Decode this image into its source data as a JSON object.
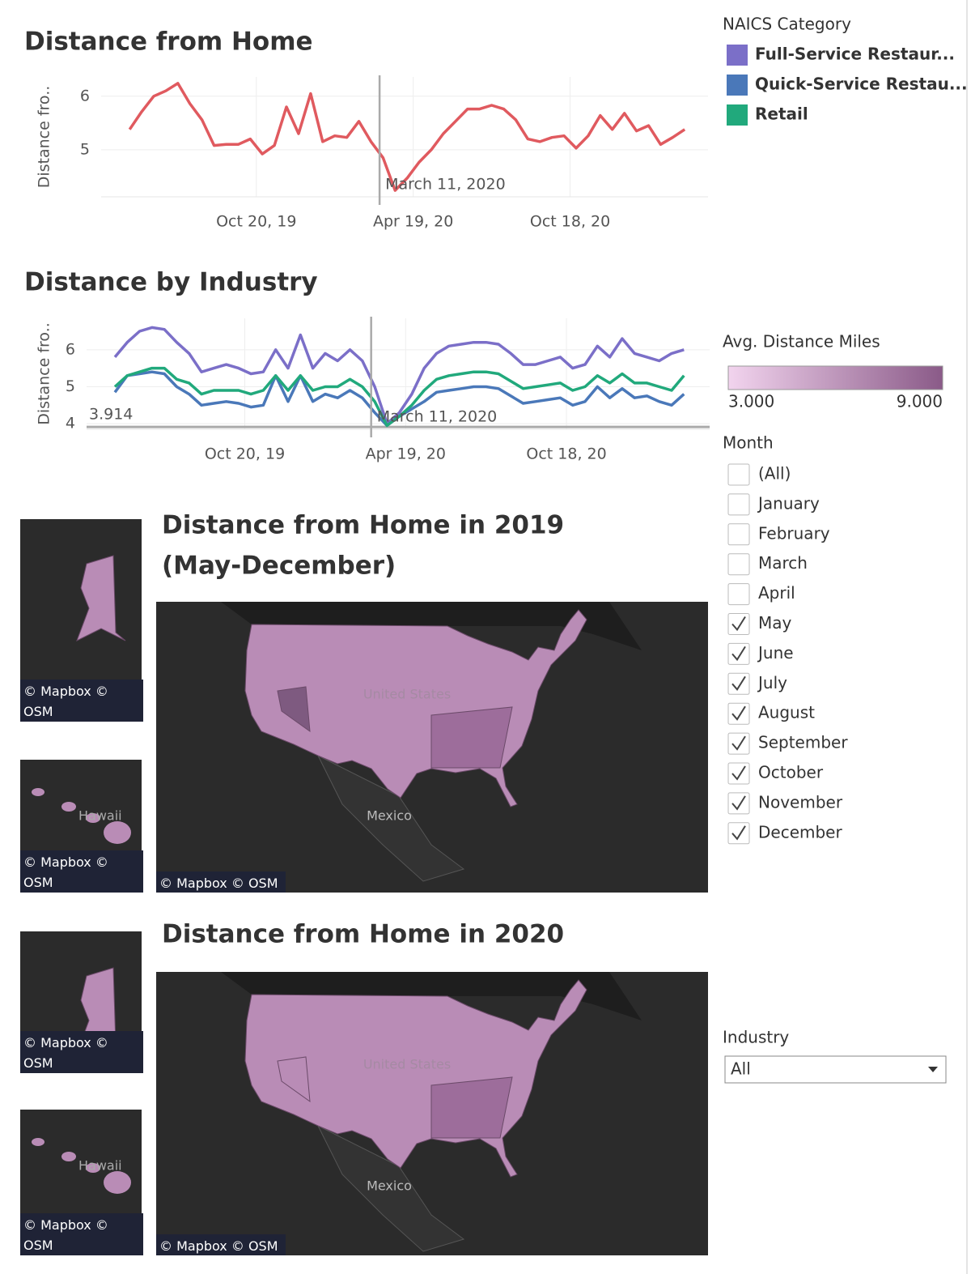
{
  "chart_data": [
    {
      "type": "line",
      "title": "Distance from Home",
      "y_label": "Distance fro..",
      "color": "#e05a5f",
      "x": [
        "2019-05-26",
        "2019-06-09",
        "2019-06-23",
        "2019-07-07",
        "2019-07-21",
        "2019-08-04",
        "2019-08-18",
        "2019-09-01",
        "2019-09-15",
        "2019-09-29",
        "2019-10-13",
        "2019-10-27",
        "2019-11-10",
        "2019-11-24",
        "2019-12-08",
        "2019-12-22",
        "2020-01-05",
        "2020-01-19",
        "2020-02-02",
        "2020-02-16",
        "2020-03-01",
        "2020-03-15",
        "2020-03-29",
        "2020-04-12",
        "2020-04-26",
        "2020-05-10",
        "2020-05-24",
        "2020-06-07",
        "2020-06-21",
        "2020-07-05",
        "2020-07-19",
        "2020-08-02",
        "2020-08-16",
        "2020-08-30",
        "2020-09-13",
        "2020-09-27",
        "2020-10-11",
        "2020-10-25",
        "2020-11-08",
        "2020-11-22",
        "2020-12-06",
        "2020-12-20",
        "2021-01-03",
        "2021-01-17",
        "2021-01-31",
        "2021-02-14",
        "2021-02-28"
      ],
      "values": [
        5.38,
        5.71,
        6.0,
        6.1,
        6.24,
        5.86,
        5.56,
        5.08,
        5.1,
        5.1,
        5.2,
        4.92,
        5.08,
        5.8,
        5.3,
        6.05,
        5.15,
        5.26,
        5.23,
        5.53,
        5.15,
        4.85,
        4.24,
        4.47,
        4.77,
        5.0,
        5.3,
        5.53,
        5.76,
        5.76,
        5.83,
        5.76,
        5.56,
        5.2,
        5.15,
        5.23,
        5.26,
        5.03,
        5.26,
        5.64,
        5.38,
        5.68,
        5.35,
        5.45,
        5.1,
        5.23,
        5.38
      ],
      "xlim": [
        "2019-04-23",
        "2021-03-27"
      ],
      "xticks": [
        {
          "value": "2019-10-20",
          "label": "Oct 20, 19"
        },
        {
          "value": "2020-04-19",
          "label": "Apr 19, 20"
        },
        {
          "value": "2020-10-18",
          "label": "Oct 18, 20"
        }
      ],
      "ylim": [
        4.12,
        6.36
      ],
      "yticks": [
        5,
        6
      ],
      "grid": true,
      "annotation": {
        "x": "2020-03-11",
        "label": "March 11, 2020"
      }
    },
    {
      "type": "line",
      "title": "Distance by Industry",
      "y_label": "Distance fro..",
      "legend_title": "NAICS Category",
      "x": [
        "2019-05-26",
        "2019-06-09",
        "2019-06-23",
        "2019-07-07",
        "2019-07-21",
        "2019-08-04",
        "2019-08-18",
        "2019-09-01",
        "2019-09-15",
        "2019-09-29",
        "2019-10-13",
        "2019-10-27",
        "2019-11-10",
        "2019-11-24",
        "2019-12-08",
        "2019-12-22",
        "2020-01-05",
        "2020-01-19",
        "2020-02-02",
        "2020-02-16",
        "2020-03-01",
        "2020-03-15",
        "2020-03-29",
        "2020-04-12",
        "2020-04-26",
        "2020-05-10",
        "2020-05-24",
        "2020-06-07",
        "2020-06-21",
        "2020-07-05",
        "2020-07-19",
        "2020-08-02",
        "2020-08-16",
        "2020-08-30",
        "2020-09-13",
        "2020-09-27",
        "2020-10-11",
        "2020-10-25",
        "2020-11-08",
        "2020-11-22",
        "2020-12-06",
        "2020-12-20",
        "2021-01-03",
        "2021-01-17",
        "2021-01-31",
        "2021-02-14",
        "2021-02-28"
      ],
      "series": [
        {
          "name": "Full-Service Restaur...",
          "color": "#7b6fc8",
          "values": [
            5.8,
            6.2,
            6.5,
            6.6,
            6.55,
            6.2,
            5.9,
            5.4,
            5.5,
            5.6,
            5.5,
            5.35,
            5.4,
            6.0,
            5.5,
            6.4,
            5.5,
            5.9,
            5.7,
            6.0,
            5.7,
            5.0,
            4.0,
            4.3,
            4.8,
            5.5,
            5.9,
            6.1,
            6.15,
            6.2,
            6.2,
            6.15,
            5.9,
            5.6,
            5.6,
            5.7,
            5.8,
            5.5,
            5.6,
            6.1,
            5.8,
            6.3,
            5.9,
            5.8,
            5.7,
            5.9,
            6.0
          ]
        },
        {
          "name": "Quick-Service Restau...",
          "color": "#4a78b9",
          "values": [
            4.85,
            5.3,
            5.35,
            5.4,
            5.35,
            5.0,
            4.8,
            4.5,
            4.55,
            4.6,
            4.55,
            4.45,
            4.5,
            5.3,
            4.6,
            5.3,
            4.6,
            4.8,
            4.7,
            4.9,
            4.7,
            4.3,
            3.95,
            4.2,
            4.4,
            4.6,
            4.85,
            4.9,
            4.95,
            5.0,
            5.0,
            4.95,
            4.75,
            4.55,
            4.6,
            4.65,
            4.7,
            4.5,
            4.6,
            5.0,
            4.7,
            4.95,
            4.7,
            4.75,
            4.6,
            4.5,
            4.8
          ]
        },
        {
          "name": "Retail",
          "color": "#21a97c",
          "values": [
            5.0,
            5.3,
            5.4,
            5.5,
            5.5,
            5.2,
            5.1,
            4.8,
            4.9,
            4.9,
            4.9,
            4.8,
            4.9,
            5.3,
            4.9,
            5.3,
            4.9,
            5.0,
            5.0,
            5.2,
            5.0,
            4.6,
            3.95,
            4.2,
            4.5,
            4.9,
            5.2,
            5.3,
            5.35,
            5.4,
            5.4,
            5.35,
            5.15,
            4.95,
            5.0,
            5.05,
            5.1,
            4.9,
            5.0,
            5.3,
            5.1,
            5.35,
            5.1,
            5.1,
            5.0,
            4.9,
            5.3
          ]
        }
      ],
      "xlim": [
        "2019-04-24",
        "2021-03-29"
      ],
      "xticks": [
        {
          "value": "2019-10-20",
          "label": "Oct 20, 19"
        },
        {
          "value": "2020-04-19",
          "label": "Apr 19, 20"
        },
        {
          "value": "2020-10-18",
          "label": "Oct 18, 20"
        }
      ],
      "ylim": [
        3.85,
        6.85
      ],
      "yticks": [
        4,
        5,
        6
      ],
      "grid": true,
      "ref_line": 3.914,
      "annotation": {
        "x": "2020-03-11",
        "label": "March 11, 2020"
      }
    }
  ],
  "color_legend": {
    "title": "Avg. Distance Miles",
    "colors": [
      "#f2d4ee",
      "#8a5a88"
    ],
    "range": [
      3,
      9
    ],
    "ticks": [
      {
        "value": 3,
        "label": "3.000"
      },
      {
        "value": 9,
        "label": "9.000"
      }
    ]
  },
  "maps": [
    {
      "title": [
        "Distance from Home in 2019",
        "(May-December)"
      ],
      "country_labels": [
        "United States",
        "Mexico"
      ],
      "inset_label": "Hawaii",
      "attribution": "© Mapbox © OSM"
    },
    {
      "title": [
        "Distance from Home in 2020"
      ],
      "country_labels": [
        "United States",
        "Mexico"
      ],
      "inset_label": "Hawaii",
      "attribution": "© Mapbox © OSM"
    }
  ],
  "filters": {
    "month": {
      "title": "Month",
      "options": [
        {
          "label": "(All)",
          "checked": false
        },
        {
          "label": "January",
          "checked": false
        },
        {
          "label": "February",
          "checked": false
        },
        {
          "label": "March",
          "checked": false
        },
        {
          "label": "April",
          "checked": false
        },
        {
          "label": "May",
          "checked": true
        },
        {
          "label": "June",
          "checked": true
        },
        {
          "label": "July",
          "checked": true
        },
        {
          "label": "August",
          "checked": true
        },
        {
          "label": "September",
          "checked": true
        },
        {
          "label": "October",
          "checked": true
        },
        {
          "label": "November",
          "checked": true
        },
        {
          "label": "December",
          "checked": true
        }
      ]
    },
    "industry": {
      "title": "Industry",
      "selected": "All"
    }
  }
}
